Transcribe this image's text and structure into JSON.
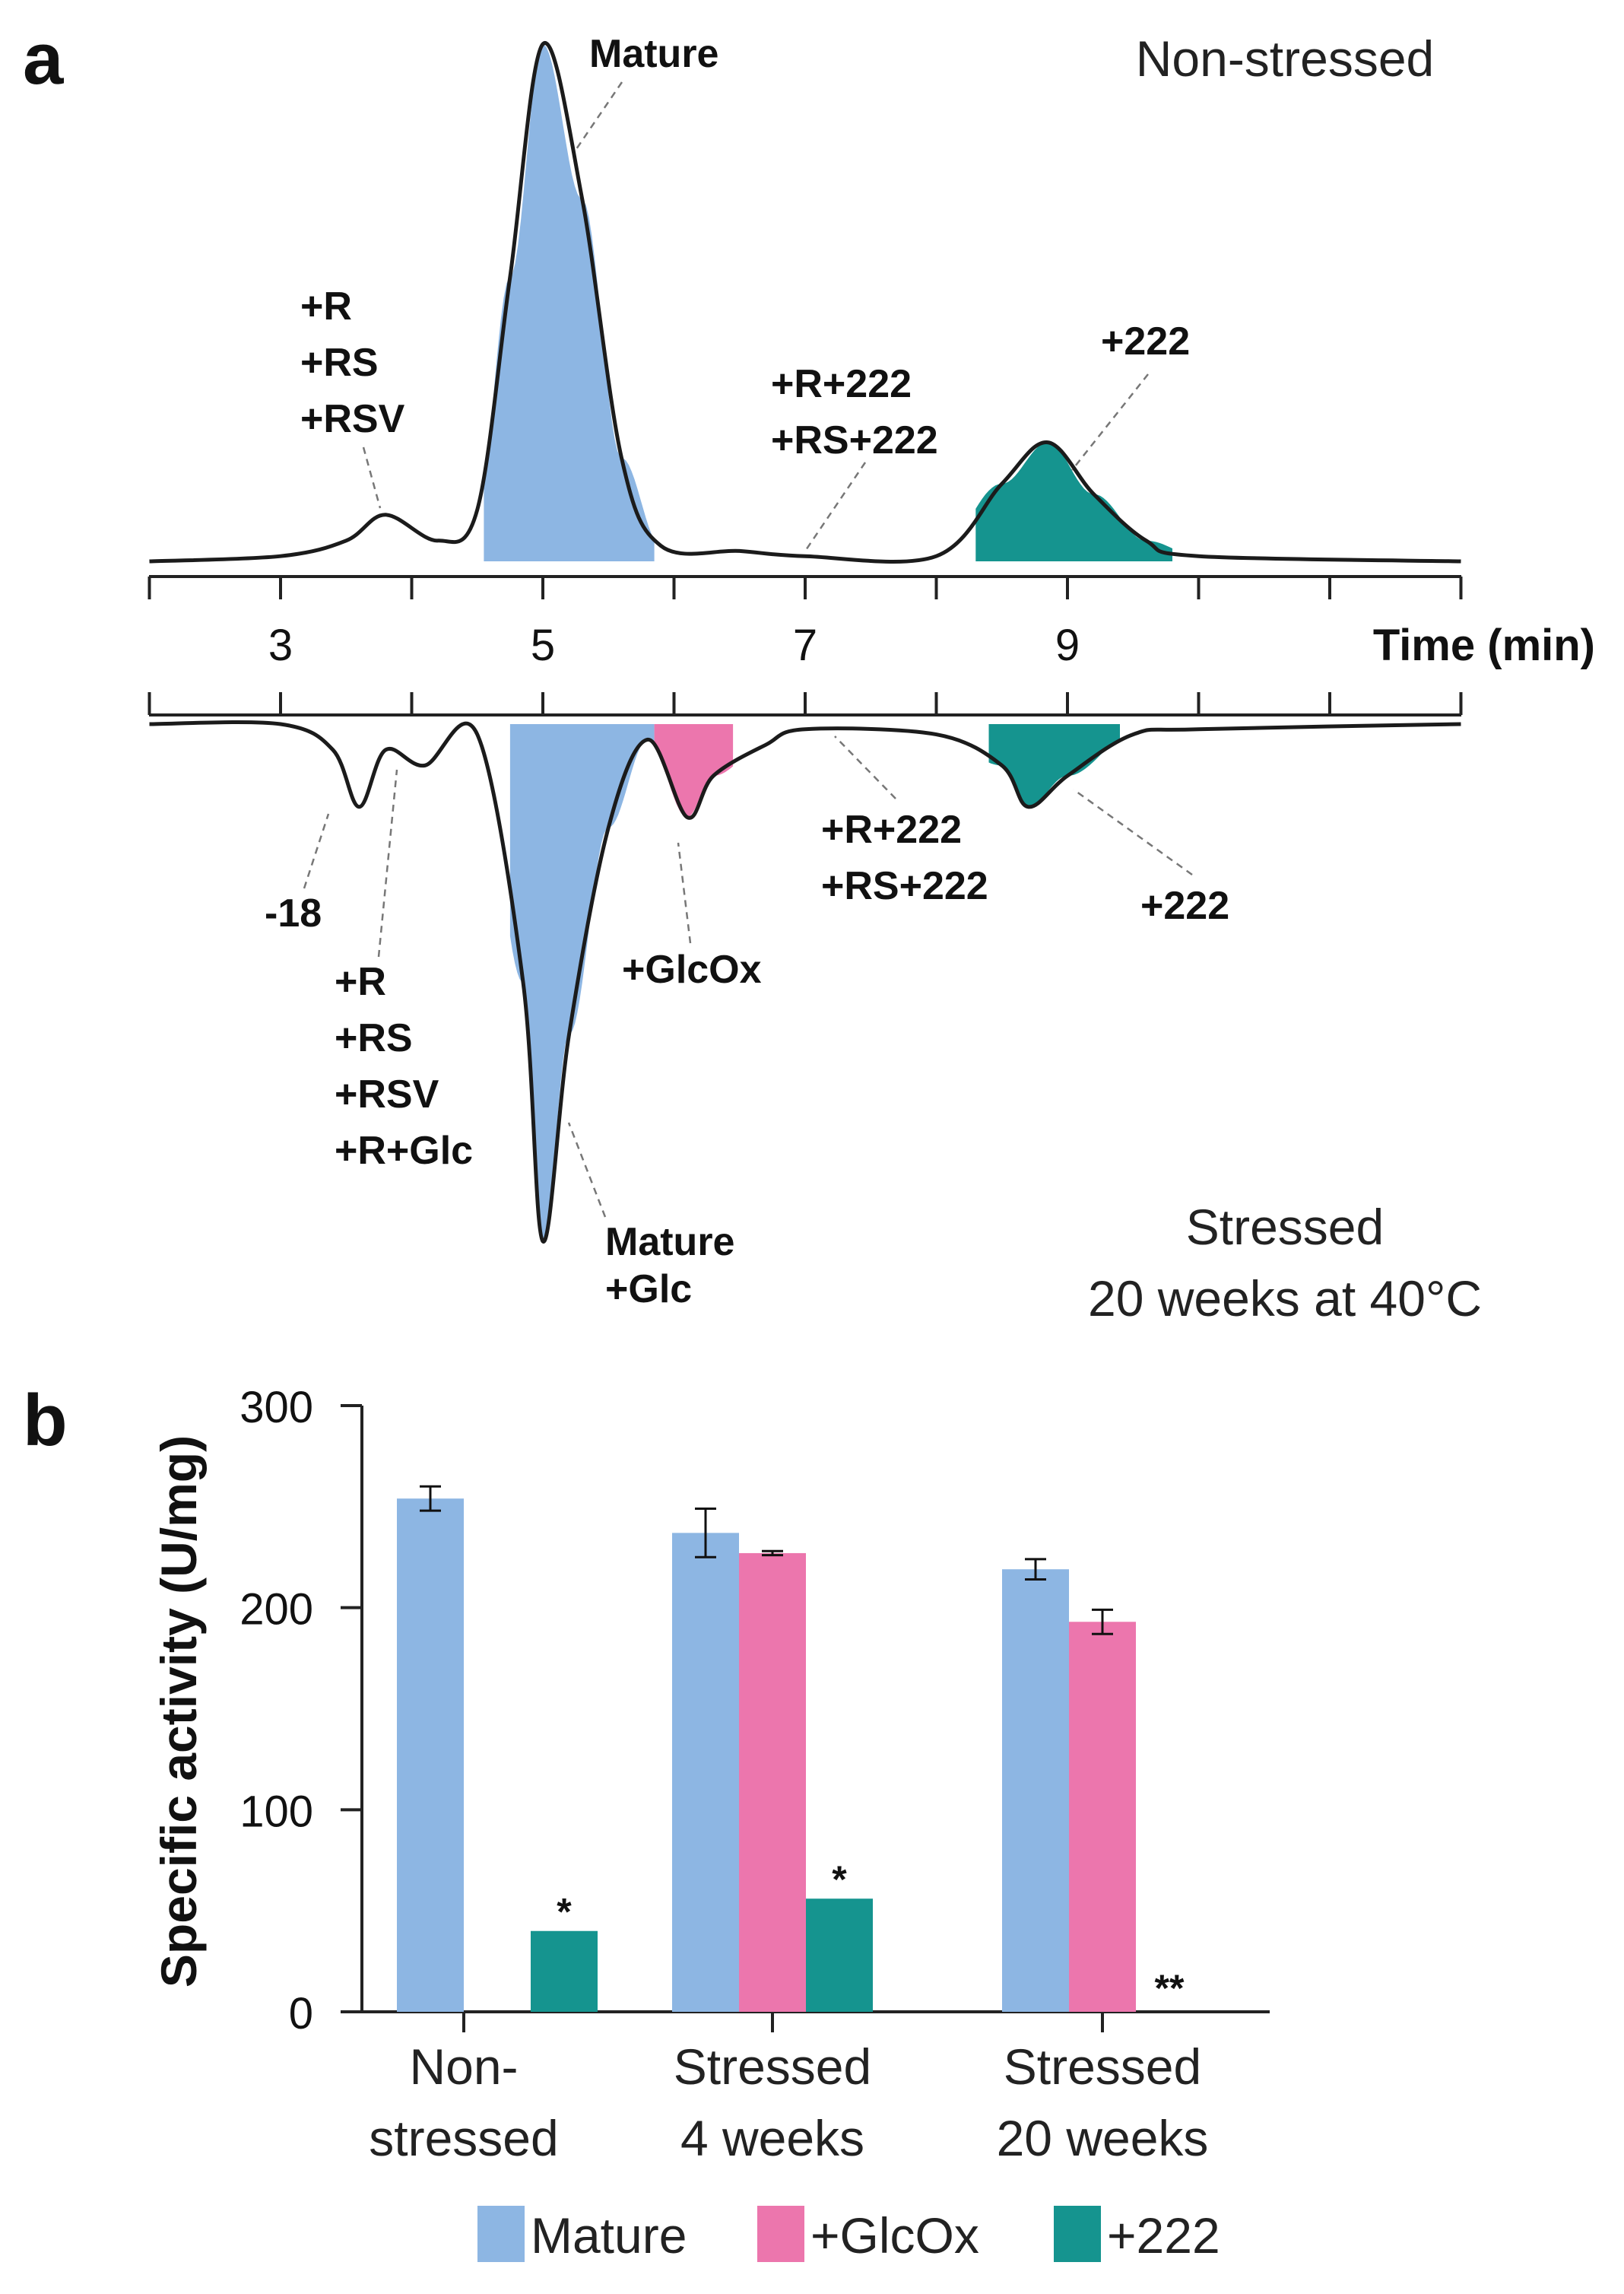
{
  "panel_a": {
    "letter": "a",
    "top_condition": "Non-stressed",
    "bottom_condition_line1": "Stressed",
    "bottom_condition_line2": "20 weeks at 40°C",
    "axis_title": "Time (min)",
    "tick_labels": [
      "3",
      "5",
      "7",
      "9"
    ],
    "top_peak_labels": {
      "mature": "Mature",
      "early": [
        "+R",
        "+RS",
        "+RSV"
      ],
      "mid": [
        "+R+222",
        "+RS+222"
      ],
      "late": "+222"
    },
    "bottom_peak_labels": {
      "minus18": "-18",
      "early": [
        "+R",
        "+RS",
        "+RSV",
        "+R+Glc"
      ],
      "mature": [
        "Mature",
        "+Glc"
      ],
      "glcox": "+GlcOx",
      "mid": [
        "+R+222",
        "+RS+222"
      ],
      "late": "+222"
    },
    "colors": {
      "mature": "#8db6e3",
      "glcox": "#ec76ad",
      "p222": "#15948f"
    }
  },
  "panel_b": {
    "letter": "b"
  },
  "chart_data": [
    {
      "type": "line",
      "title": "",
      "xlabel": "Time (min)",
      "xlim": [
        2,
        12
      ],
      "xticks": [
        3,
        5,
        7,
        9
      ],
      "series": [
        {
          "name": "Non-stressed",
          "x": [
            2.0,
            3.0,
            3.5,
            3.8,
            4.2,
            4.5,
            4.75,
            5.0,
            5.3,
            5.6,
            5.9,
            6.5,
            7.0,
            8.0,
            8.5,
            8.85,
            9.2,
            9.6,
            10.0,
            12.0
          ],
          "y": [
            0.0,
            0.01,
            0.04,
            0.09,
            0.04,
            0.1,
            0.55,
            1.0,
            0.7,
            0.2,
            0.03,
            0.02,
            0.01,
            0.01,
            0.15,
            0.23,
            0.13,
            0.04,
            0.01,
            0.0
          ],
          "shaded_peaks": [
            {
              "label": "Mature",
              "x_range": [
                4.55,
                5.85
              ]
            },
            {
              "label": "+222",
              "x_range": [
                8.3,
                9.8
              ]
            }
          ]
        },
        {
          "name": "Stressed 20 weeks at 40°C",
          "x": [
            2.0,
            3.0,
            3.4,
            3.6,
            3.8,
            4.1,
            4.5,
            4.85,
            5.0,
            5.2,
            5.5,
            5.8,
            6.1,
            6.3,
            6.7,
            7.0,
            8.0,
            8.5,
            8.7,
            9.0,
            9.5,
            10.0,
            12.0
          ],
          "y": [
            0.0,
            0.0,
            -0.05,
            -0.16,
            -0.05,
            -0.08,
            -0.02,
            -0.5,
            -1.0,
            -0.6,
            -0.2,
            -0.03,
            -0.18,
            -0.1,
            -0.04,
            -0.01,
            -0.02,
            -0.08,
            -0.16,
            -0.1,
            -0.02,
            -0.01,
            0.0
          ],
          "shaded_peaks": [
            {
              "label": "Mature +Glc",
              "x_range": [
                4.75,
                5.85
              ]
            },
            {
              "label": "+GlcOx",
              "x_range": [
                5.85,
                6.45
              ]
            },
            {
              "label": "+222",
              "x_range": [
                8.4,
                9.4
              ]
            }
          ]
        }
      ]
    },
    {
      "type": "bar",
      "title": "",
      "ylabel": "Specific activity (U/mg)",
      "ylim": [
        0,
        300
      ],
      "yticks": [
        0,
        100,
        200,
        300
      ],
      "categories": [
        [
          "Non-",
          "stressed"
        ],
        [
          "Stressed",
          "4 weeks"
        ],
        [
          "Stressed",
          "20 weeks"
        ]
      ],
      "series": [
        {
          "name": "Mature",
          "color": "#8db6e3",
          "values": [
            254,
            237,
            219
          ],
          "errors": [
            6,
            12,
            5
          ]
        },
        {
          "name": "+GlcOx",
          "color": "#ec76ad",
          "values": [
            null,
            227,
            193
          ],
          "errors": [
            null,
            1,
            6
          ]
        },
        {
          "name": "+222",
          "color": "#15948f",
          "values": [
            40,
            56,
            0
          ],
          "errors": [
            null,
            null,
            null
          ]
        }
      ],
      "annotations": [
        "*",
        "*",
        "**"
      ],
      "legend": {
        "position": "bottom",
        "entries": [
          "Mature",
          "+GlcOx",
          "+222"
        ]
      }
    }
  ]
}
